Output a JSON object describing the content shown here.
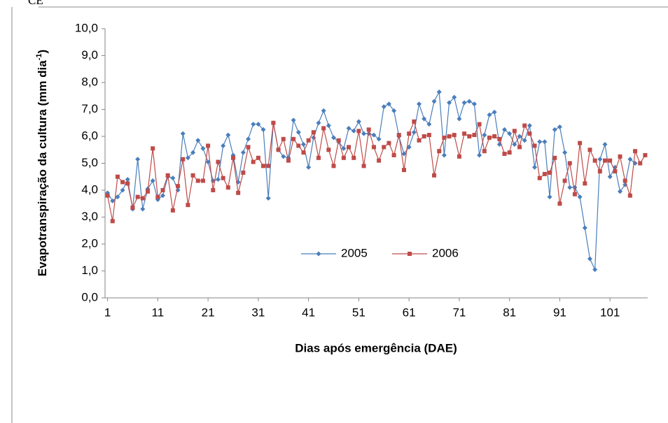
{
  "corner_text": "CE",
  "chart_data": {
    "type": "line",
    "xlabel": "Dias após emergência (DAE)",
    "ylabel": "Evapotranspiração da cultura (mm dia",
    "ylabel_sup": "-1",
    "ylabel_end": ")",
    "legend": "inside-lower-center",
    "categories": [
      1,
      null,
      null,
      null,
      null,
      null,
      null,
      null,
      null,
      null,
      11,
      null,
      null,
      null,
      null,
      null,
      null,
      null,
      null,
      null,
      21,
      null,
      null,
      null,
      null,
      null,
      null,
      null,
      null,
      null,
      31,
      null,
      null,
      null,
      null,
      null,
      null,
      null,
      null,
      null,
      41,
      null,
      null,
      null,
      null,
      null,
      null,
      null,
      null,
      null,
      51,
      null,
      null,
      null,
      null,
      null,
      null,
      null,
      null,
      null,
      61,
      null,
      null,
      null,
      null,
      null,
      null,
      null,
      null,
      null,
      71,
      null,
      null,
      null,
      null,
      null,
      null,
      null,
      null,
      null,
      81,
      null,
      null,
      null,
      null,
      null,
      null,
      null,
      null,
      null,
      91,
      null,
      null,
      null,
      null,
      null,
      null,
      null,
      null,
      null,
      101,
      null,
      null,
      null,
      null,
      null,
      null,
      null
    ],
    "ylim": [
      0,
      10
    ],
    "yticks": [
      {
        "value": 0,
        "label": "0,0"
      },
      {
        "value": 1,
        "label": "1,0"
      },
      {
        "value": 2,
        "label": "2,0"
      },
      {
        "value": 3,
        "label": "3,0"
      },
      {
        "value": 4,
        "label": "4,0"
      },
      {
        "value": 5,
        "label": "5,0"
      },
      {
        "value": 6,
        "label": "6,0"
      },
      {
        "value": 7,
        "label": "7,0"
      },
      {
        "value": 8,
        "label": "8,0"
      },
      {
        "value": 9,
        "label": "9,0"
      },
      {
        "value": 10,
        "label": "10,0"
      }
    ],
    "series": [
      {
        "name": "2005",
        "color": "#4a7ebb",
        "marker": "diamond",
        "values": [
          3.9,
          3.6,
          3.75,
          4.0,
          4.4,
          3.3,
          5.15,
          3.3,
          4.05,
          4.35,
          3.65,
          3.8,
          4.5,
          4.45,
          4.0,
          6.1,
          5.2,
          5.4,
          5.85,
          5.55,
          5.05,
          4.35,
          4.4,
          5.65,
          6.05,
          5.3,
          4.3,
          5.4,
          5.9,
          6.45,
          6.45,
          6.25,
          3.7,
          6.5,
          5.5,
          5.25,
          5.2,
          6.6,
          6.15,
          5.7,
          4.85,
          5.95,
          6.5,
          6.95,
          6.4,
          5.95,
          5.8,
          5.55,
          6.3,
          6.2,
          6.55,
          6.1,
          6.1,
          6.05,
          5.9,
          7.1,
          7.2,
          6.95,
          6.0,
          5.35,
          5.6,
          6.15,
          7.2,
          6.65,
          6.45,
          7.3,
          7.65,
          5.3,
          7.25,
          7.45,
          6.65,
          7.25,
          7.3,
          7.2,
          5.3,
          6.05,
          6.8,
          6.9,
          5.7,
          6.25,
          6.1,
          5.7,
          6.0,
          5.85,
          6.4,
          4.85,
          5.8,
          5.8,
          3.75,
          6.25,
          6.35,
          5.4,
          4.1,
          4.1,
          3.75,
          2.6,
          1.45,
          1.05,
          5.15,
          5.7,
          4.5,
          4.85,
          3.95,
          4.2,
          5.15,
          5.0,
          null,
          null
        ]
      },
      {
        "name": "2006",
        "color": "#be4b48",
        "marker": "square",
        "values": [
          3.8,
          2.85,
          4.5,
          4.3,
          4.25,
          3.35,
          3.75,
          3.7,
          3.95,
          5.55,
          3.75,
          4.0,
          4.55,
          3.25,
          4.15,
          5.15,
          3.45,
          4.55,
          4.35,
          4.35,
          5.65,
          4.0,
          5.05,
          4.45,
          4.1,
          5.2,
          3.9,
          4.65,
          5.6,
          5.05,
          5.2,
          4.9,
          4.9,
          6.5,
          5.5,
          5.9,
          5.1,
          5.9,
          5.65,
          5.4,
          5.85,
          6.15,
          5.2,
          6.3,
          5.5,
          4.9,
          5.85,
          5.2,
          5.6,
          5.2,
          6.2,
          4.9,
          6.25,
          5.6,
          5.1,
          5.6,
          5.75,
          5.3,
          6.05,
          4.75,
          6.1,
          6.55,
          5.85,
          6.0,
          6.05,
          4.55,
          5.45,
          5.95,
          6.0,
          6.05,
          5.25,
          6.1,
          6.0,
          6.05,
          6.45,
          5.45,
          5.95,
          6.0,
          5.9,
          5.35,
          5.4,
          6.2,
          5.6,
          6.4,
          6.1,
          5.65,
          4.45,
          4.6,
          4.65,
          5.2,
          3.5,
          4.35,
          5.0,
          3.85,
          5.75,
          4.25,
          5.5,
          5.1,
          4.7,
          5.1,
          5.1,
          4.7,
          5.25,
          4.35,
          3.8,
          5.45,
          5.0,
          5.3
        ]
      }
    ]
  }
}
